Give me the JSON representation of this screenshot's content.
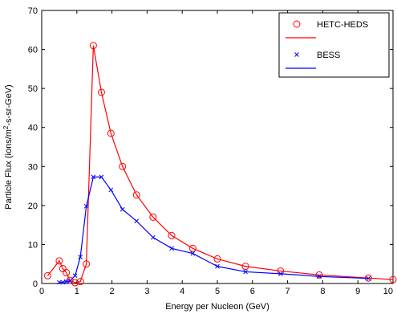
{
  "chart_data": {
    "type": "line",
    "xlabel": "Energy per Nucleon (GeV)",
    "ylabel_parts": [
      "Particle Flux (ions/m",
      "2",
      "-s-sr-GeV)"
    ],
    "xlim": [
      0,
      10
    ],
    "ylim": [
      0,
      70
    ],
    "xticks": [
      0,
      1,
      2,
      3,
      4,
      5,
      6,
      7,
      8,
      9,
      10
    ],
    "yticks": [
      0,
      10,
      20,
      30,
      40,
      50,
      60,
      70
    ],
    "grid": false,
    "legend_position": "top-right",
    "series": [
      {
        "name": "HETC-HEDS",
        "marker": "circle",
        "color": "#ff0000",
        "x": [
          0.17,
          0.5,
          0.6,
          0.7,
          0.8,
          0.95,
          1.1,
          1.27,
          1.47,
          1.7,
          1.97,
          2.3,
          2.7,
          3.17,
          3.7,
          4.3,
          5.0,
          5.8,
          6.8,
          7.9,
          9.3,
          10.0
        ],
        "y": [
          2.0,
          5.8,
          3.8,
          2.8,
          0.8,
          0.2,
          0.5,
          5.0,
          61.0,
          49.0,
          38.5,
          30.0,
          22.7,
          17.0,
          12.3,
          9.0,
          6.3,
          4.4,
          3.2,
          2.2,
          1.4,
          1.0
        ]
      },
      {
        "name": "BESS",
        "marker": "x",
        "color": "#0000ff",
        "x": [
          0.5,
          0.6,
          0.7,
          0.8,
          0.95,
          1.1,
          1.27,
          1.47,
          1.7,
          1.97,
          2.3,
          2.7,
          3.17,
          3.7,
          4.3,
          5.0,
          5.8,
          6.8,
          7.9,
          9.3
        ],
        "y": [
          0.3,
          0.3,
          0.5,
          0.6,
          2.0,
          6.8,
          19.8,
          27.3,
          27.3,
          24.0,
          19.0,
          16.0,
          11.8,
          9.0,
          7.7,
          4.4,
          3.0,
          2.5,
          1.8,
          1.3
        ]
      }
    ]
  }
}
